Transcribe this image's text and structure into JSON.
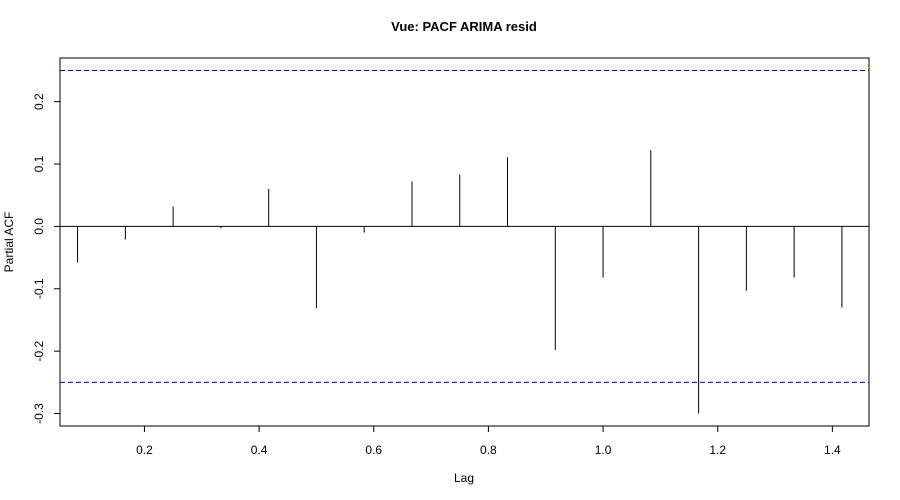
{
  "chart_data": {
    "type": "bar",
    "title": "Vue: PACF ARIMA resid",
    "xlabel": "Lag",
    "ylabel": "Partial ACF",
    "xlim": [
      0.0527,
      1.4639
    ],
    "ylim": [
      -0.32,
      0.27
    ],
    "xticks": [
      0.2,
      0.4,
      0.6,
      0.8,
      1.0,
      1.2,
      1.4
    ],
    "xtick_labels": [
      "0.2",
      "0.4",
      "0.6",
      "0.8",
      "1.0",
      "1.2",
      "1.4"
    ],
    "yticks": [
      -0.3,
      -0.2,
      -0.1,
      0.0,
      0.1,
      0.2
    ],
    "ytick_labels": [
      "-0.3",
      "-0.2",
      "-0.1",
      "0.0",
      "0.1",
      "0.2"
    ],
    "confidence_bounds": [
      0.25,
      -0.25
    ],
    "bound_color": "#0000cd",
    "x": [
      0.0833,
      0.1667,
      0.25,
      0.3333,
      0.4167,
      0.5,
      0.5833,
      0.6667,
      0.75,
      0.8333,
      0.9167,
      1.0,
      1.0833,
      1.1667,
      1.25,
      1.3333,
      1.4167
    ],
    "values": [
      -0.058,
      -0.021,
      0.032,
      -0.003,
      0.06,
      -0.131,
      -0.01,
      0.072,
      0.083,
      0.111,
      -0.198,
      -0.082,
      0.122,
      -0.3,
      -0.103,
      -0.082,
      -0.13
    ]
  }
}
